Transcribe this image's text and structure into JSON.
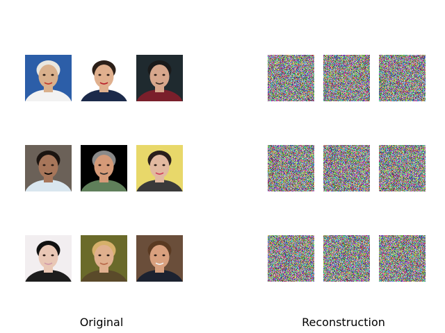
{
  "original": {
    "caption": "Original",
    "faces": [
      {
        "name": "face-1",
        "bg": "#2c5ea8",
        "skin": "#d9b08c",
        "hair": "#e9e6df",
        "shirt": "#f2f2f2",
        "accent": "#c0392b"
      },
      {
        "name": "face-2",
        "bg": "#ffffff",
        "skin": "#e0b08e",
        "hair": "#2b1f18",
        "shirt": "#1c2a4a",
        "accent": "#b8202b"
      },
      {
        "name": "face-3",
        "bg": "#1f2a2f",
        "skin": "#d7a78c",
        "hair": "#1a1a1a",
        "shirt": "#7a1f2b",
        "accent": "#3a2a22"
      },
      {
        "name": "face-4",
        "bg": "#6b6158",
        "skin": "#a7765a",
        "hair": "#1b1410",
        "shirt": "#d9e6ef",
        "accent": "#000000"
      },
      {
        "name": "face-5",
        "bg": "#000000",
        "skin": "#d59a78",
        "hair": "#8a8a8a",
        "shirt": "#5f7f5a",
        "accent": "#2c2c2c"
      },
      {
        "name": "face-6",
        "bg": "#e8d86a",
        "skin": "#e2b9a0",
        "hair": "#2a1f1c",
        "shirt": "#3a3a3a",
        "accent": "#d0405a"
      },
      {
        "name": "face-7",
        "bg": "#f2eef0",
        "skin": "#e9c7b5",
        "hair": "#111111",
        "shirt": "#1d1d1d",
        "accent": "#d09aa8"
      },
      {
        "name": "face-8",
        "bg": "#6a6a2a",
        "skin": "#e0b08e",
        "hair": "#d6b06a",
        "shirt": "#5a4a2a",
        "accent": "#b86a4a"
      },
      {
        "name": "face-9",
        "bg": "#6a4e3a",
        "skin": "#d9a07e",
        "hair": "#5a3a22",
        "shirt": "#1c2230",
        "accent": "#f0f0f0"
      }
    ]
  },
  "reconstruction": {
    "caption": "Reconstruction",
    "tiles": [
      {
        "name": "noise-1"
      },
      {
        "name": "noise-2"
      },
      {
        "name": "noise-3"
      },
      {
        "name": "noise-4"
      },
      {
        "name": "noise-5"
      },
      {
        "name": "noise-6"
      },
      {
        "name": "noise-7"
      },
      {
        "name": "noise-8"
      },
      {
        "name": "noise-9"
      }
    ]
  }
}
